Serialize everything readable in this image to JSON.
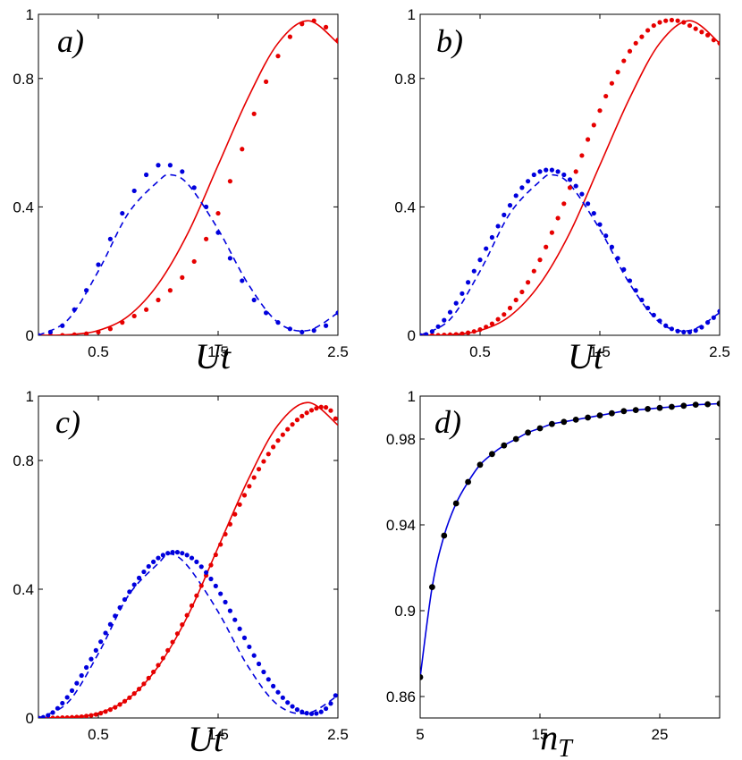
{
  "chart_data": [
    {
      "type": "line",
      "panel_label": "a)",
      "xlabel": "Ut",
      "xlim": [
        0,
        2.5
      ],
      "ylim": [
        0,
        1
      ],
      "xticks": [
        "0.5",
        "1.5",
        "2.5"
      ],
      "yticks": [
        "0",
        "0.4",
        "0.8",
        "1"
      ],
      "series": [
        {
          "name": "solid",
          "style": "solid",
          "color": "#e60000",
          "x": [
            0,
            0.25,
            0.5,
            0.75,
            1.0,
            1.25,
            1.5,
            1.75,
            2.0,
            2.25,
            2.5
          ],
          "y": [
            0,
            0.002,
            0.015,
            0.06,
            0.16,
            0.32,
            0.53,
            0.74,
            0.91,
            0.98,
            0.91
          ]
        },
        {
          "name": "dashed",
          "style": "dashed",
          "color": "#0000dd",
          "x": [
            0,
            0.25,
            0.5,
            0.75,
            1.0,
            1.1,
            1.25,
            1.5,
            1.75,
            2.0,
            2.25,
            2.5
          ],
          "y": [
            0,
            0.05,
            0.2,
            0.38,
            0.48,
            0.5,
            0.47,
            0.33,
            0.16,
            0.04,
            0.015,
            0.07
          ]
        },
        {
          "name": "red-dots",
          "style": "dots",
          "color": "#e60000",
          "x": [
            0,
            0.1,
            0.2,
            0.3,
            0.4,
            0.5,
            0.6,
            0.7,
            0.8,
            0.9,
            1.0,
            1.1,
            1.2,
            1.3,
            1.4,
            1.5,
            1.6,
            1.7,
            1.8,
            1.9,
            2.0,
            2.1,
            2.2,
            2.3,
            2.4,
            2.5
          ],
          "y": [
            0,
            0,
            0,
            0.002,
            0.005,
            0.01,
            0.02,
            0.04,
            0.06,
            0.08,
            0.11,
            0.14,
            0.18,
            0.23,
            0.3,
            0.38,
            0.48,
            0.58,
            0.69,
            0.79,
            0.87,
            0.93,
            0.97,
            0.98,
            0.96,
            0.92
          ]
        },
        {
          "name": "blue-dots",
          "style": "dots",
          "color": "#0000dd",
          "x": [
            0,
            0.1,
            0.2,
            0.3,
            0.4,
            0.5,
            0.6,
            0.7,
            0.8,
            0.9,
            1.0,
            1.1,
            1.2,
            1.3,
            1.4,
            1.5,
            1.6,
            1.7,
            1.8,
            1.9,
            2.0,
            2.1,
            2.2,
            2.3,
            2.4,
            2.5
          ],
          "y": [
            0,
            0.01,
            0.03,
            0.08,
            0.14,
            0.22,
            0.3,
            0.38,
            0.45,
            0.5,
            0.53,
            0.53,
            0.51,
            0.46,
            0.4,
            0.32,
            0.24,
            0.17,
            0.11,
            0.07,
            0.04,
            0.02,
            0.01,
            0.015,
            0.03,
            0.07
          ]
        }
      ]
    },
    {
      "type": "line",
      "panel_label": "b)",
      "xlabel": "Ut",
      "xlim": [
        0,
        2.5
      ],
      "ylim": [
        0,
        1
      ],
      "xticks": [
        "0.5",
        "1.5",
        "2.5"
      ],
      "yticks": [
        "0",
        "0.4",
        "0.8",
        "1"
      ],
      "series": [
        {
          "name": "solid",
          "style": "solid",
          "color": "#e60000",
          "x": [
            0,
            0.25,
            0.5,
            0.75,
            1.0,
            1.25,
            1.5,
            1.75,
            2.0,
            2.25,
            2.5
          ],
          "y": [
            0,
            0.002,
            0.015,
            0.06,
            0.16,
            0.32,
            0.53,
            0.74,
            0.91,
            0.98,
            0.91
          ]
        },
        {
          "name": "dashed",
          "style": "dashed",
          "color": "#0000dd",
          "x": [
            0,
            0.25,
            0.5,
            0.75,
            1.0,
            1.1,
            1.25,
            1.5,
            1.75,
            2.0,
            2.25,
            2.5
          ],
          "y": [
            0,
            0.05,
            0.2,
            0.38,
            0.48,
            0.5,
            0.47,
            0.33,
            0.16,
            0.04,
            0.015,
            0.07
          ]
        },
        {
          "name": "red-dots",
          "style": "dots",
          "color": "#e60000",
          "x": [
            0,
            0.05,
            0.1,
            0.15,
            0.2,
            0.25,
            0.3,
            0.35,
            0.4,
            0.45,
            0.5,
            0.55,
            0.6,
            0.65,
            0.7,
            0.75,
            0.8,
            0.85,
            0.9,
            0.95,
            1.0,
            1.05,
            1.1,
            1.15,
            1.2,
            1.25,
            1.3,
            1.35,
            1.4,
            1.45,
            1.5,
            1.55,
            1.6,
            1.65,
            1.7,
            1.75,
            1.8,
            1.85,
            1.9,
            1.95,
            2.0,
            2.05,
            2.1,
            2.15,
            2.2,
            2.25,
            2.3,
            2.35,
            2.4,
            2.45,
            2.5
          ],
          "y": [
            0,
            0,
            0,
            0,
            0.001,
            0.002,
            0.003,
            0.005,
            0.008,
            0.012,
            0.018,
            0.026,
            0.036,
            0.05,
            0.065,
            0.085,
            0.11,
            0.135,
            0.165,
            0.2,
            0.235,
            0.275,
            0.32,
            0.365,
            0.41,
            0.46,
            0.51,
            0.56,
            0.61,
            0.655,
            0.7,
            0.745,
            0.785,
            0.82,
            0.855,
            0.885,
            0.91,
            0.93,
            0.95,
            0.965,
            0.975,
            0.98,
            0.982,
            0.98,
            0.975,
            0.965,
            0.955,
            0.945,
            0.935,
            0.92,
            0.91
          ]
        },
        {
          "name": "blue-dots",
          "style": "dots",
          "color": "#0000dd",
          "x": [
            0,
            0.05,
            0.1,
            0.15,
            0.2,
            0.25,
            0.3,
            0.35,
            0.4,
            0.45,
            0.5,
            0.55,
            0.6,
            0.65,
            0.7,
            0.75,
            0.8,
            0.85,
            0.9,
            0.95,
            1.0,
            1.05,
            1.1,
            1.15,
            1.2,
            1.25,
            1.3,
            1.35,
            1.4,
            1.45,
            1.5,
            1.55,
            1.6,
            1.65,
            1.7,
            1.75,
            1.8,
            1.85,
            1.9,
            1.95,
            2.0,
            2.05,
            2.1,
            2.15,
            2.2,
            2.25,
            2.3,
            2.35,
            2.4,
            2.45,
            2.5
          ],
          "y": [
            0,
            0.003,
            0.012,
            0.027,
            0.047,
            0.072,
            0.1,
            0.13,
            0.165,
            0.2,
            0.235,
            0.27,
            0.305,
            0.34,
            0.375,
            0.405,
            0.435,
            0.46,
            0.48,
            0.5,
            0.51,
            0.515,
            0.515,
            0.51,
            0.5,
            0.485,
            0.465,
            0.44,
            0.41,
            0.38,
            0.345,
            0.31,
            0.275,
            0.24,
            0.205,
            0.17,
            0.14,
            0.11,
            0.085,
            0.063,
            0.045,
            0.03,
            0.02,
            0.013,
            0.01,
            0.01,
            0.015,
            0.025,
            0.04,
            0.055,
            0.075
          ]
        }
      ]
    },
    {
      "type": "line",
      "panel_label": "c)",
      "xlabel": "Ut",
      "xlim": [
        0,
        2.5
      ],
      "ylim": [
        0,
        1
      ],
      "xticks": [
        "0.5",
        "1.5",
        "2.5"
      ],
      "yticks": [
        "0",
        "0.4",
        "0.8",
        "1"
      ],
      "series": [
        {
          "name": "solid",
          "style": "solid",
          "color": "#e60000",
          "x": [
            0,
            0.25,
            0.5,
            0.75,
            1.0,
            1.25,
            1.5,
            1.75,
            2.0,
            2.25,
            2.5
          ],
          "y": [
            0,
            0.002,
            0.015,
            0.06,
            0.16,
            0.32,
            0.53,
            0.74,
            0.91,
            0.98,
            0.91
          ]
        },
        {
          "name": "dashed",
          "style": "dashed",
          "color": "#0000dd",
          "x": [
            0,
            0.25,
            0.5,
            0.75,
            1.0,
            1.1,
            1.25,
            1.5,
            1.75,
            2.0,
            2.25,
            2.5
          ],
          "y": [
            0,
            0.05,
            0.2,
            0.38,
            0.48,
            0.51,
            0.47,
            0.33,
            0.16,
            0.04,
            0.015,
            0.07
          ]
        },
        {
          "name": "red-dots",
          "style": "dots",
          "color": "#e60000",
          "x": [
            0,
            0.04,
            0.08,
            0.12,
            0.16,
            0.2,
            0.24,
            0.28,
            0.32,
            0.36,
            0.4,
            0.44,
            0.48,
            0.52,
            0.56,
            0.6,
            0.64,
            0.68,
            0.72,
            0.76,
            0.8,
            0.84,
            0.88,
            0.92,
            0.96,
            1.0,
            1.04,
            1.08,
            1.12,
            1.16,
            1.2,
            1.24,
            1.28,
            1.32,
            1.36,
            1.4,
            1.44,
            1.48,
            1.52,
            1.56,
            1.6,
            1.64,
            1.68,
            1.72,
            1.76,
            1.8,
            1.84,
            1.88,
            1.92,
            1.96,
            2.0,
            2.04,
            2.08,
            2.12,
            2.16,
            2.2,
            2.24,
            2.28,
            2.32,
            2.36,
            2.4,
            2.44,
            2.48
          ],
          "y": [
            0,
            0,
            0,
            0,
            0,
            0.001,
            0.001,
            0.002,
            0.003,
            0.004,
            0.006,
            0.008,
            0.011,
            0.015,
            0.02,
            0.026,
            0.033,
            0.042,
            0.052,
            0.063,
            0.076,
            0.09,
            0.106,
            0.124,
            0.143,
            0.164,
            0.186,
            0.21,
            0.236,
            0.262,
            0.29,
            0.319,
            0.349,
            0.38,
            0.411,
            0.443,
            0.475,
            0.507,
            0.539,
            0.571,
            0.602,
            0.633,
            0.663,
            0.692,
            0.72,
            0.747,
            0.773,
            0.797,
            0.82,
            0.842,
            0.862,
            0.88,
            0.897,
            0.912,
            0.926,
            0.938,
            0.948,
            0.956,
            0.962,
            0.966,
            0.965,
            0.955,
            0.93
          ]
        },
        {
          "name": "blue-dots",
          "style": "dots",
          "color": "#0000dd",
          "x": [
            0,
            0.04,
            0.08,
            0.12,
            0.16,
            0.2,
            0.24,
            0.28,
            0.32,
            0.36,
            0.4,
            0.44,
            0.48,
            0.52,
            0.56,
            0.6,
            0.64,
            0.68,
            0.72,
            0.76,
            0.8,
            0.84,
            0.88,
            0.92,
            0.96,
            1.0,
            1.04,
            1.08,
            1.12,
            1.16,
            1.2,
            1.24,
            1.28,
            1.32,
            1.36,
            1.4,
            1.44,
            1.48,
            1.52,
            1.56,
            1.6,
            1.64,
            1.68,
            1.72,
            1.76,
            1.8,
            1.84,
            1.88,
            1.92,
            1.96,
            2.0,
            2.04,
            2.08,
            2.12,
            2.16,
            2.2,
            2.24,
            2.28,
            2.32,
            2.36,
            2.4,
            2.44,
            2.48
          ],
          "y": [
            0,
            0.002,
            0.008,
            0.017,
            0.03,
            0.046,
            0.064,
            0.085,
            0.108,
            0.132,
            0.157,
            0.183,
            0.21,
            0.237,
            0.264,
            0.291,
            0.317,
            0.343,
            0.368,
            0.392,
            0.414,
            0.435,
            0.454,
            0.471,
            0.485,
            0.497,
            0.506,
            0.512,
            0.515,
            0.515,
            0.512,
            0.506,
            0.497,
            0.485,
            0.47,
            0.452,
            0.432,
            0.41,
            0.386,
            0.36,
            0.333,
            0.305,
            0.277,
            0.249,
            0.221,
            0.194,
            0.168,
            0.143,
            0.12,
            0.099,
            0.08,
            0.063,
            0.048,
            0.036,
            0.026,
            0.019,
            0.015,
            0.013,
            0.014,
            0.019,
            0.029,
            0.045,
            0.07
          ]
        }
      ]
    },
    {
      "type": "line",
      "panel_label": "d)",
      "xlabel": "n_T",
      "xlim": [
        5,
        30
      ],
      "ylim": [
        0.85,
        1.0
      ],
      "xticks": [
        "5",
        "15",
        "25"
      ],
      "yticks": [
        "0.86",
        "0.9",
        "0.94",
        "0.98",
        "1"
      ],
      "series": [
        {
          "name": "curve",
          "style": "solid-dots",
          "color": "#000000",
          "line_color": "#0000dd",
          "x": [
            5,
            6,
            7,
            8,
            9,
            10,
            11,
            12,
            13,
            14,
            15,
            16,
            17,
            18,
            19,
            20,
            21,
            22,
            23,
            24,
            25,
            26,
            27,
            28,
            29,
            30
          ],
          "y": [
            0.869,
            0.911,
            0.935,
            0.95,
            0.96,
            0.968,
            0.973,
            0.977,
            0.98,
            0.983,
            0.985,
            0.987,
            0.988,
            0.989,
            0.99,
            0.991,
            0.992,
            0.993,
            0.9935,
            0.994,
            0.9945,
            0.995,
            0.9955,
            0.996,
            0.9962,
            0.9965
          ]
        }
      ]
    }
  ]
}
